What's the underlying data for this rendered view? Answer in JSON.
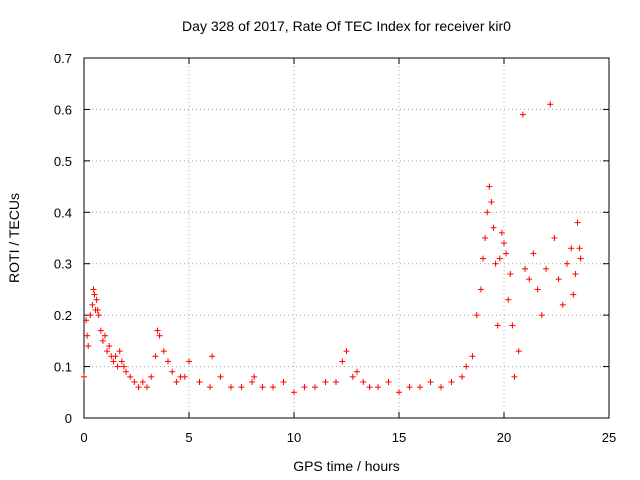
{
  "chart_data": {
    "type": "scatter",
    "title": "Day 328 of 2017, Rate Of TEC Index for receiver kir0",
    "xlabel": "GPS time / hours",
    "ylabel": "ROTI / TECUs",
    "xlim": [
      0,
      25
    ],
    "ylim": [
      0,
      0.7
    ],
    "x_ticks": [
      0,
      5,
      10,
      15,
      20,
      25
    ],
    "x_tick_labels": [
      "0",
      "5",
      "10",
      "15",
      "20",
      "25"
    ],
    "y_ticks": [
      0,
      0.1,
      0.2,
      0.3,
      0.4,
      0.5,
      0.6,
      0.7
    ],
    "y_tick_labels": [
      "0",
      "0.1",
      "0.2",
      "0.3",
      "0.4",
      "0.5",
      "0.6",
      "0.7"
    ],
    "grid": true,
    "marker": "plus",
    "color": "#ff0000",
    "series": [
      {
        "name": "ROTI",
        "x": [
          0.0,
          0.1,
          0.15,
          0.2,
          0.3,
          0.4,
          0.45,
          0.5,
          0.55,
          0.6,
          0.65,
          0.7,
          0.8,
          0.9,
          1.0,
          1.1,
          1.2,
          1.3,
          1.4,
          1.5,
          1.6,
          1.7,
          1.8,
          1.9,
          2.0,
          2.2,
          2.4,
          2.6,
          2.8,
          3.0,
          3.2,
          3.4,
          3.5,
          3.6,
          3.8,
          4.0,
          4.2,
          4.4,
          4.6,
          4.8,
          5.0,
          5.5,
          6.0,
          6.1,
          6.5,
          7.0,
          7.5,
          8.0,
          8.1,
          8.5,
          9.0,
          9.5,
          10.0,
          10.5,
          11.0,
          11.5,
          12.0,
          12.3,
          12.5,
          12.8,
          13.0,
          13.3,
          13.6,
          14.0,
          14.5,
          15.0,
          15.5,
          16.0,
          16.5,
          17.0,
          17.5,
          18.0,
          18.2,
          18.5,
          18.7,
          18.9,
          19.0,
          19.1,
          19.2,
          19.3,
          19.4,
          19.5,
          19.6,
          19.7,
          19.8,
          19.9,
          20.0,
          20.1,
          20.2,
          20.3,
          20.4,
          20.5,
          20.7,
          20.9,
          21.0,
          21.2,
          21.4,
          21.6,
          21.8,
          22.0,
          22.2,
          22.4,
          22.6,
          22.8,
          23.0,
          23.2,
          23.3,
          23.4,
          23.5,
          23.6,
          23.65
        ],
        "y": [
          0.08,
          0.19,
          0.16,
          0.14,
          0.2,
          0.22,
          0.25,
          0.24,
          0.21,
          0.23,
          0.21,
          0.2,
          0.17,
          0.15,
          0.16,
          0.13,
          0.14,
          0.12,
          0.11,
          0.12,
          0.1,
          0.13,
          0.11,
          0.1,
          0.09,
          0.08,
          0.07,
          0.06,
          0.07,
          0.06,
          0.08,
          0.12,
          0.17,
          0.16,
          0.13,
          0.11,
          0.09,
          0.07,
          0.08,
          0.08,
          0.11,
          0.07,
          0.06,
          0.12,
          0.08,
          0.06,
          0.06,
          0.07,
          0.08,
          0.06,
          0.06,
          0.07,
          0.05,
          0.06,
          0.06,
          0.07,
          0.07,
          0.11,
          0.13,
          0.08,
          0.09,
          0.07,
          0.06,
          0.06,
          0.07,
          0.05,
          0.06,
          0.06,
          0.07,
          0.06,
          0.07,
          0.08,
          0.1,
          0.12,
          0.2,
          0.25,
          0.31,
          0.35,
          0.4,
          0.45,
          0.42,
          0.37,
          0.3,
          0.18,
          0.31,
          0.36,
          0.34,
          0.32,
          0.23,
          0.28,
          0.18,
          0.08,
          0.13,
          0.59,
          0.29,
          0.27,
          0.32,
          0.25,
          0.2,
          0.29,
          0.61,
          0.35,
          0.27,
          0.22,
          0.3,
          0.33,
          0.24,
          0.28,
          0.38,
          0.33,
          0.31
        ]
      }
    ]
  }
}
